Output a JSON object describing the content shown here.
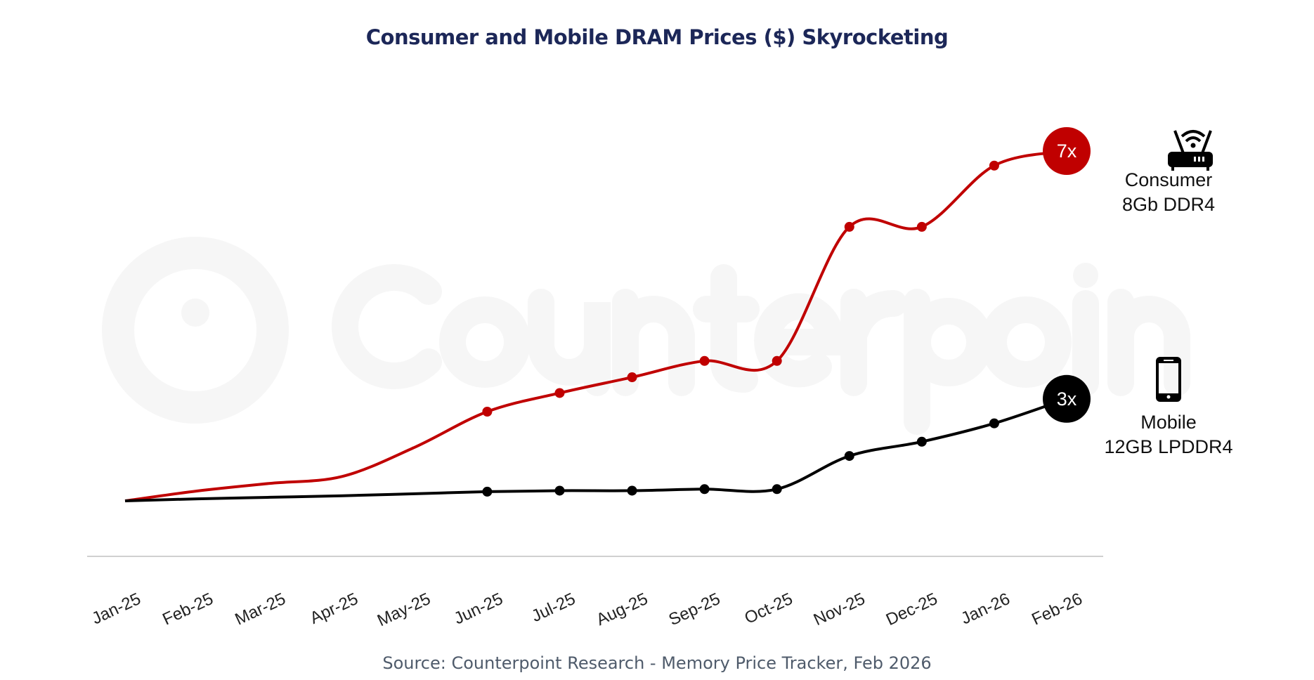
{
  "title": "Consumer and Mobile DRAM Prices ($) Skyrocketing",
  "source": "Source: Counterpoint Research - Memory Price Tracker, Feb 2026",
  "watermark": "Counterpoint",
  "chart_data": {
    "type": "line",
    "title": "Consumer and Mobile DRAM Prices ($) Skyrocketing",
    "xlabel": "",
    "ylabel": "",
    "categories": [
      "Jan-25",
      "Feb-25",
      "Mar-25",
      "Apr-25",
      "May-25",
      "Jun-25",
      "Jul-25",
      "Aug-25",
      "Sep-25",
      "Oct-25",
      "Nov-25",
      "Dec-25",
      "Jan-26",
      "Feb-26"
    ],
    "y_axis_shown": false,
    "grid": false,
    "series": [
      {
        "name": "Consumer 8Gb DDR4",
        "color": "#c00000",
        "values": [
          1.0,
          1.17,
          1.3,
          1.42,
          1.92,
          2.53,
          2.85,
          3.12,
          3.4,
          3.4,
          5.7,
          5.7,
          6.75,
          7.0
        ],
        "end_label": "7x",
        "icon": "router-icon",
        "label_lines": [
          "Consumer",
          "8Gb DDR4"
        ]
      },
      {
        "name": "Mobile 12GB LPDDR4",
        "color": "#000000",
        "values": [
          1.0,
          1.04,
          1.07,
          1.1,
          1.14,
          1.18,
          1.2,
          1.2,
          1.23,
          1.23,
          1.88,
          2.16,
          2.52,
          3.0
        ],
        "end_label": "3x",
        "icon": "smartphone-icon",
        "label_lines": [
          "Mobile",
          "12GB LPDDR4"
        ]
      }
    ]
  }
}
